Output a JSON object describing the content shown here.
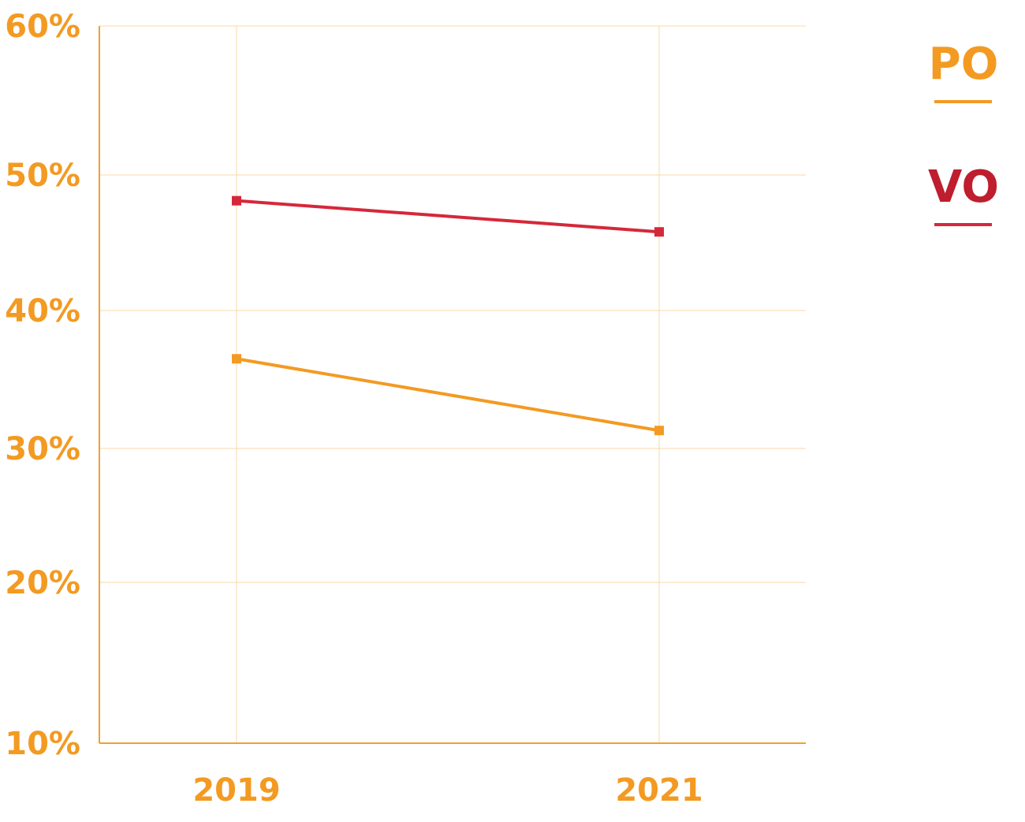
{
  "chart_data": {
    "type": "line",
    "title": "",
    "xlabel": "",
    "ylabel": "",
    "categories": [
      "2019",
      "2021"
    ],
    "ylim": [
      10,
      60
    ],
    "yticks": [
      10,
      20,
      30,
      40,
      50,
      60
    ],
    "ytick_labels": [
      "10%",
      "20%",
      "30%",
      "40%",
      "50%",
      "60%"
    ],
    "grid": true,
    "legend_position": "top-right",
    "series": [
      {
        "name": "PO",
        "values": [
          36.5,
          31.3
        ],
        "color": "#F39A22"
      },
      {
        "name": "VO",
        "values": [
          48.1,
          45.8
        ],
        "color": "#D5283A"
      }
    ],
    "colors": {
      "axis": "#F0A030",
      "grid": "#F7D9A8",
      "tick_text": "#F39A22",
      "legend_vo_text": "#BE1E2D"
    }
  }
}
